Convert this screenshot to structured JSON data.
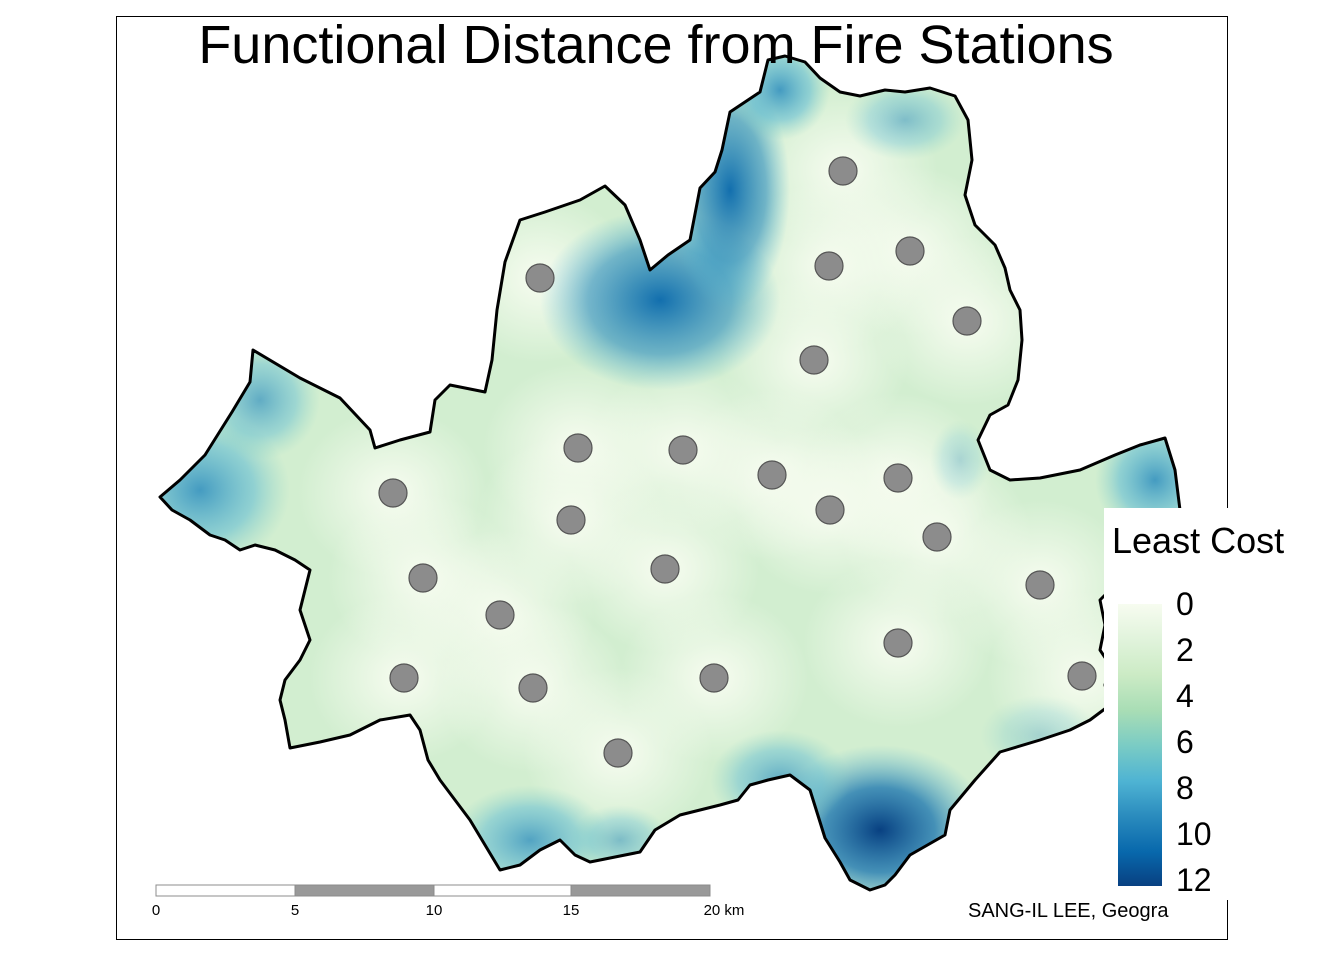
{
  "map": {
    "title": "Functional Distance from Fire Stations",
    "legend": {
      "title": "Least Cost",
      "ticks": [
        "0",
        "2",
        "4",
        "6",
        "8",
        "10",
        "12"
      ],
      "min": 0,
      "max": 12,
      "colors": [
        "#f7fcf0",
        "#e0f3db",
        "#ccebc5",
        "#a8ddb5",
        "#7bccc4",
        "#4eb3d3",
        "#2b8cbe",
        "#0868ac",
        "#084081"
      ]
    },
    "scale_bar": {
      "labels": [
        "0",
        "5",
        "10",
        "15",
        "20 km"
      ]
    },
    "credit": "SANG-IL LEE, Geogra",
    "marker_color": "#8c8c8c",
    "boundary_color": "#000000",
    "fire_station_count": 26
  }
}
